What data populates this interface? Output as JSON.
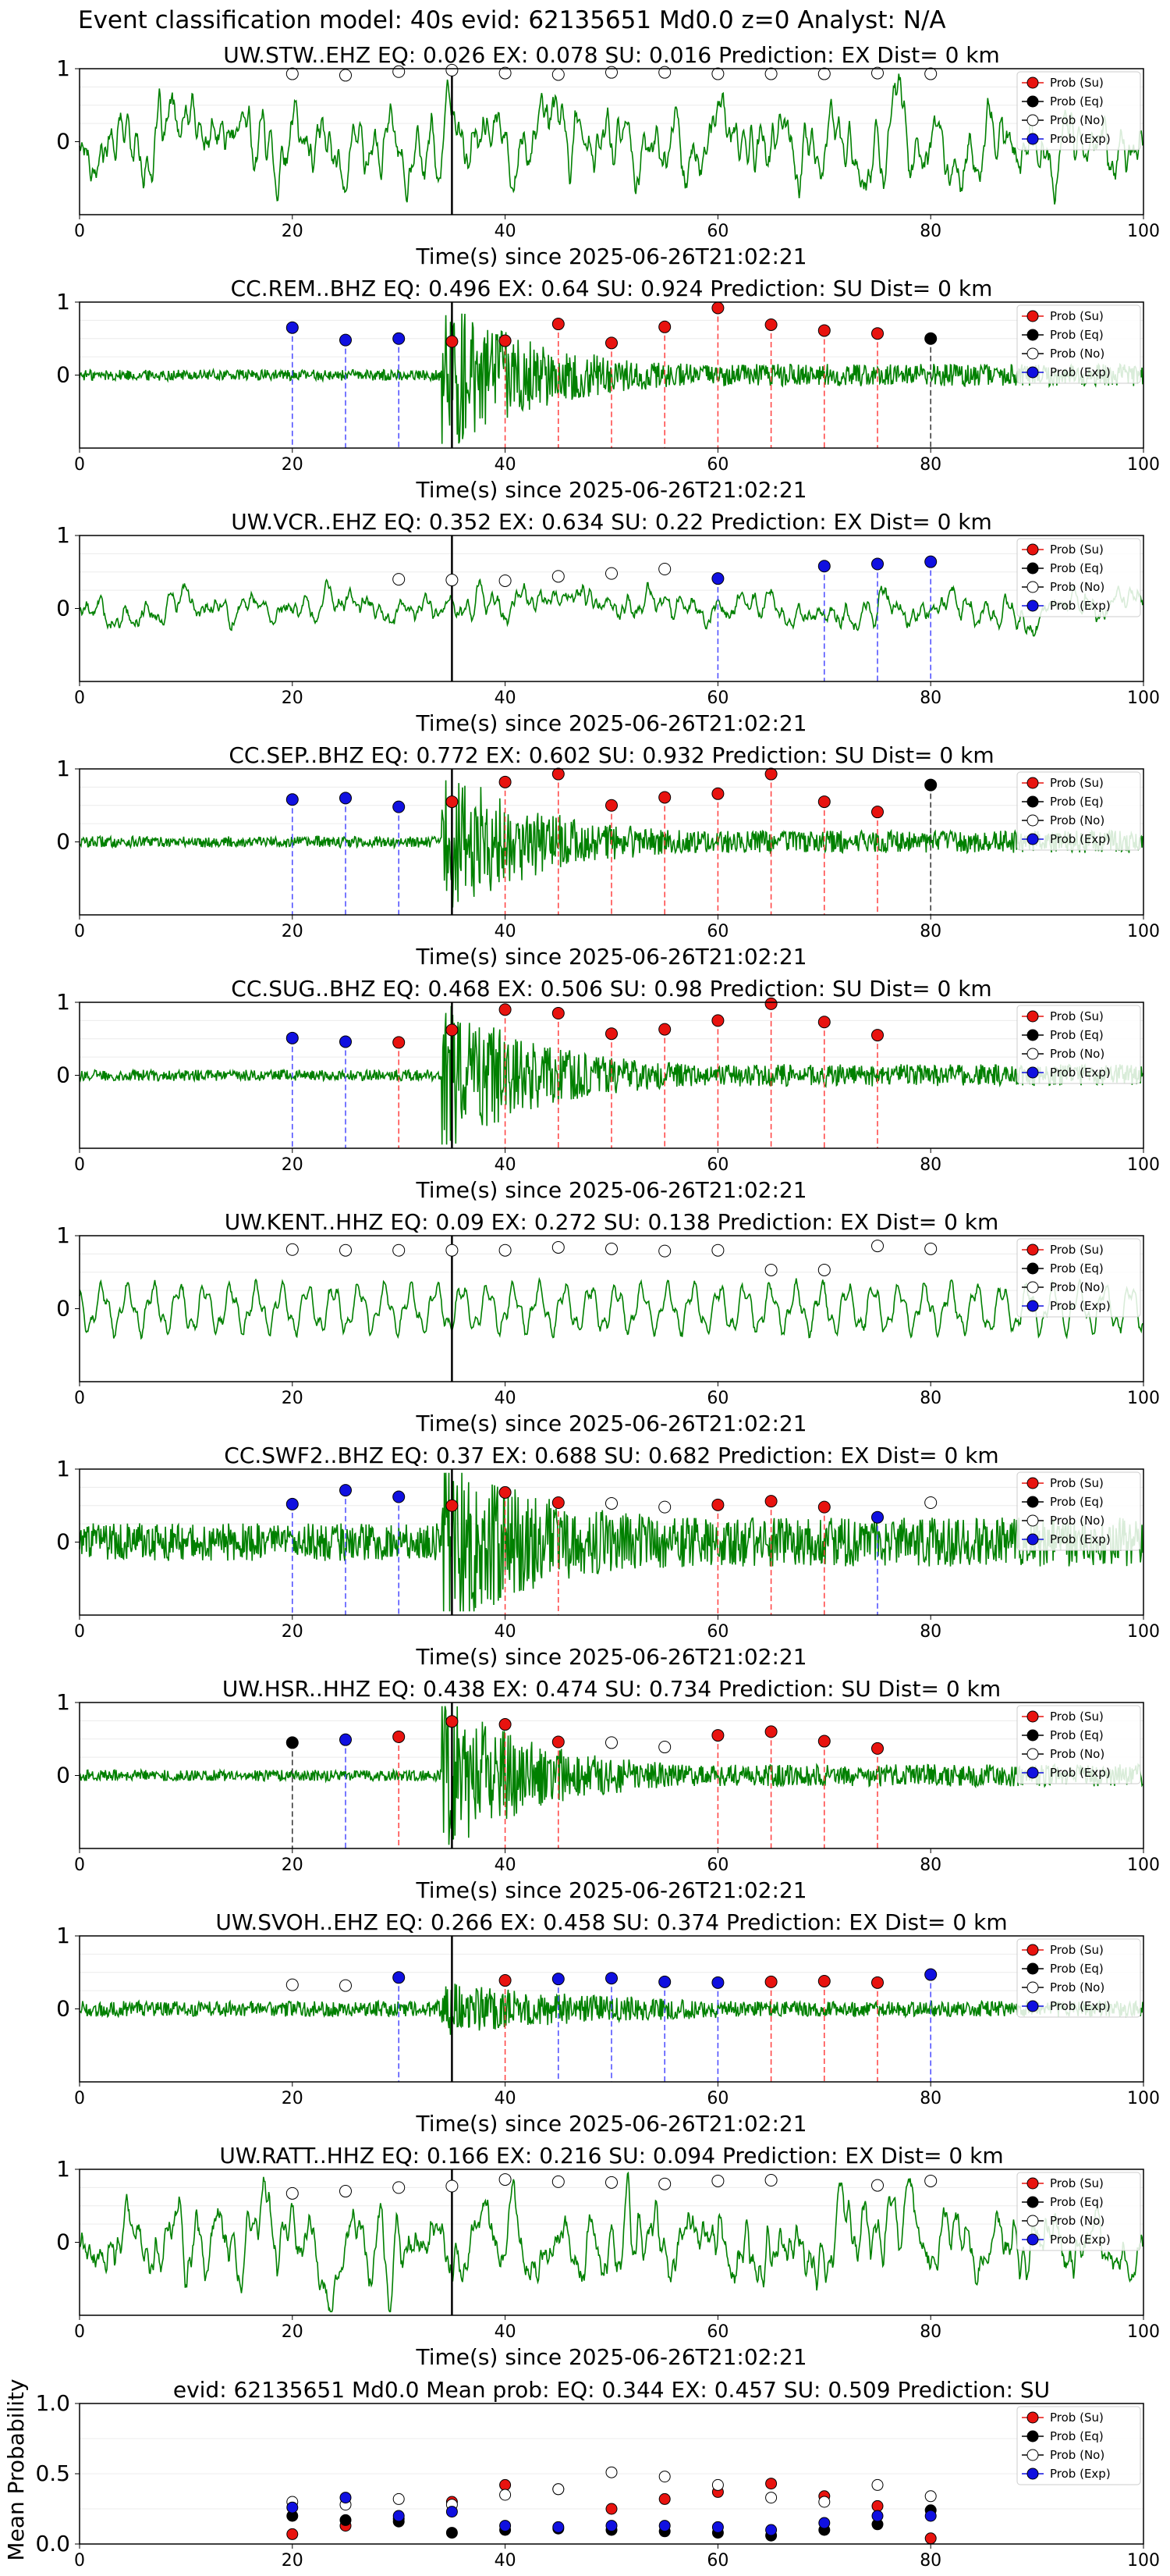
{
  "figure_title": "Event classification model: 40s evid: 62135651 Md0.0 z=0 Analyst: N/A",
  "legend_labels": [
    "Prob (Su)",
    "Prob (Eq)",
    "Prob (No)",
    "Prob (Exp)"
  ],
  "colors": {
    "Su": "#e8130f",
    "Eq": "#000000",
    "No": "#ffffff",
    "Exp": "#1010e0",
    "waveform": "#008000",
    "line_Su": "#ff4040",
    "line_Eq": "#333333",
    "line_Exp": "#4a4aff"
  },
  "x_axis": {
    "xlabel": "Time(s) since 2025-06-26T21:02:21",
    "ticks": [
      0,
      20,
      40,
      60,
      80,
      100
    ]
  },
  "chart_data": [
    {
      "type": "line",
      "title": "UW.STW..EHZ   EQ: 0.026  EX: 0.078  SU: 0.016   Prediction: EX    Dist= 0 km",
      "xlabel": "Time(s) since 2025-06-26T21:02:21",
      "xlim": [
        0,
        100
      ],
      "ylim": [
        -1,
        1
      ],
      "yticks": [
        0,
        1
      ],
      "arrival_time": 35,
      "waveform_style": "noisy",
      "legend_position": "top-right",
      "points": [
        [
          20,
          0.93,
          "No"
        ],
        [
          25,
          0.91,
          "No"
        ],
        [
          30,
          0.96,
          "No"
        ],
        [
          35,
          0.98,
          "No"
        ],
        [
          40,
          0.94,
          "No"
        ],
        [
          45,
          0.92,
          "No"
        ],
        [
          50,
          0.95,
          "No"
        ],
        [
          55,
          0.95,
          "No"
        ],
        [
          60,
          0.93,
          "No"
        ],
        [
          65,
          0.93,
          "No"
        ],
        [
          70,
          0.93,
          "No"
        ],
        [
          75,
          0.94,
          "No"
        ],
        [
          80,
          0.93,
          "No"
        ]
      ]
    },
    {
      "type": "line",
      "title": "CC.REM..BHZ   EQ: 0.496  EX: 0.64  SU: 0.924   Prediction: SU    Dist= 0 km",
      "xlabel": "Time(s) since 2025-06-26T21:02:21",
      "xlim": [
        0,
        100
      ],
      "ylim": [
        -1,
        1
      ],
      "yticks": [
        0,
        1
      ],
      "arrival_time": 35,
      "waveform_style": "event",
      "legend_position": "top-right",
      "points": [
        [
          20,
          0.65,
          "Exp"
        ],
        [
          25,
          0.48,
          "Exp"
        ],
        [
          30,
          0.5,
          "Exp"
        ],
        [
          35,
          0.46,
          "Su"
        ],
        [
          40,
          0.47,
          "Su"
        ],
        [
          45,
          0.7,
          "Su"
        ],
        [
          50,
          0.44,
          "Su"
        ],
        [
          55,
          0.66,
          "Su"
        ],
        [
          60,
          0.92,
          "Su"
        ],
        [
          65,
          0.69,
          "Su"
        ],
        [
          70,
          0.61,
          "Su"
        ],
        [
          75,
          0.57,
          "Su"
        ],
        [
          80,
          0.5,
          "Eq"
        ]
      ]
    },
    {
      "type": "line",
      "title": "UW.VCR..EHZ   EQ: 0.352  EX: 0.634  SU: 0.22   Prediction: EX    Dist= 0 km",
      "xlabel": "Time(s) since 2025-06-26T21:02:21",
      "xlim": [
        0,
        100
      ],
      "ylim": [
        -1,
        1
      ],
      "yticks": [
        0,
        1
      ],
      "arrival_time": 35,
      "waveform_style": "noisy_small",
      "legend_position": "top-right",
      "points": [
        [
          30,
          0.4,
          "No"
        ],
        [
          35,
          0.39,
          "No"
        ],
        [
          40,
          0.38,
          "No"
        ],
        [
          45,
          0.44,
          "No"
        ],
        [
          50,
          0.48,
          "No"
        ],
        [
          55,
          0.54,
          "No"
        ],
        [
          60,
          0.41,
          "Exp"
        ],
        [
          70,
          0.58,
          "Exp"
        ],
        [
          75,
          0.61,
          "Exp"
        ],
        [
          80,
          0.64,
          "Exp"
        ]
      ]
    },
    {
      "type": "line",
      "title": "CC.SEP..BHZ   EQ: 0.772  EX: 0.602  SU: 0.932   Prediction: SU    Dist= 0 km",
      "xlabel": "Time(s) since 2025-06-26T21:02:21",
      "xlim": [
        0,
        100
      ],
      "ylim": [
        -1,
        1
      ],
      "yticks": [
        0,
        1
      ],
      "arrival_time": 35,
      "waveform_style": "event",
      "legend_position": "top-right",
      "points": [
        [
          20,
          0.58,
          "Exp"
        ],
        [
          25,
          0.6,
          "Exp"
        ],
        [
          30,
          0.48,
          "Exp"
        ],
        [
          35,
          0.55,
          "Su"
        ],
        [
          40,
          0.82,
          "Su"
        ],
        [
          45,
          0.93,
          "Su"
        ],
        [
          50,
          0.5,
          "Su"
        ],
        [
          55,
          0.61,
          "Su"
        ],
        [
          60,
          0.66,
          "Su"
        ],
        [
          65,
          0.93,
          "Su"
        ],
        [
          70,
          0.55,
          "Su"
        ],
        [
          75,
          0.41,
          "Su"
        ],
        [
          80,
          0.78,
          "Eq"
        ]
      ]
    },
    {
      "type": "line",
      "title": "CC.SUG..BHZ   EQ: 0.468  EX: 0.506  SU: 0.98   Prediction: SU    Dist= 0 km",
      "xlabel": "Time(s) since 2025-06-26T21:02:21",
      "xlim": [
        0,
        100
      ],
      "ylim": [
        -1,
        1
      ],
      "yticks": [
        0,
        1
      ],
      "arrival_time": 35,
      "waveform_style": "event",
      "legend_position": "top-right",
      "points": [
        [
          20,
          0.51,
          "Exp"
        ],
        [
          25,
          0.46,
          "Exp"
        ],
        [
          30,
          0.45,
          "Su"
        ],
        [
          35,
          0.62,
          "Su"
        ],
        [
          40,
          0.9,
          "Su"
        ],
        [
          45,
          0.85,
          "Su"
        ],
        [
          50,
          0.57,
          "Su"
        ],
        [
          55,
          0.63,
          "Su"
        ],
        [
          60,
          0.75,
          "Su"
        ],
        [
          65,
          0.98,
          "Su"
        ],
        [
          70,
          0.73,
          "Su"
        ],
        [
          75,
          0.55,
          "Su"
        ]
      ]
    },
    {
      "type": "line",
      "title": "UW.KENT..HHZ   EQ: 0.09  EX: 0.272  SU: 0.138   Prediction: EX    Dist= 0 km",
      "xlabel": "Time(s) since 2025-06-26T21:02:21",
      "xlim": [
        0,
        100
      ],
      "ylim": [
        -1,
        1
      ],
      "yticks": [
        0,
        1
      ],
      "arrival_time": 35,
      "waveform_style": "smooth",
      "legend_position": "top-right",
      "points": [
        [
          20,
          0.81,
          "No"
        ],
        [
          25,
          0.8,
          "No"
        ],
        [
          30,
          0.8,
          "No"
        ],
        [
          35,
          0.8,
          "No"
        ],
        [
          40,
          0.8,
          "No"
        ],
        [
          45,
          0.84,
          "No"
        ],
        [
          50,
          0.82,
          "No"
        ],
        [
          55,
          0.79,
          "No"
        ],
        [
          60,
          0.8,
          "No"
        ],
        [
          65,
          0.53,
          "No"
        ],
        [
          70,
          0.53,
          "No"
        ],
        [
          75,
          0.86,
          "No"
        ],
        [
          80,
          0.82,
          "No"
        ]
      ]
    },
    {
      "type": "line",
      "title": "CC.SWF2..BHZ   EQ: 0.37  EX: 0.688  SU: 0.682   Prediction: EX    Dist= 0 km",
      "xlabel": "Time(s) since 2025-06-26T21:02:21",
      "xlim": [
        0,
        100
      ],
      "ylim": [
        -1,
        1
      ],
      "yticks": [
        0,
        1
      ],
      "arrival_time": 35,
      "waveform_style": "event_noisy",
      "legend_position": "top-right",
      "points": [
        [
          20,
          0.52,
          "Exp"
        ],
        [
          25,
          0.71,
          "Exp"
        ],
        [
          30,
          0.62,
          "Exp"
        ],
        [
          35,
          0.5,
          "Su"
        ],
        [
          40,
          0.68,
          "Su"
        ],
        [
          45,
          0.54,
          "Su"
        ],
        [
          50,
          0.53,
          "No"
        ],
        [
          55,
          0.48,
          "No"
        ],
        [
          60,
          0.51,
          "Su"
        ],
        [
          65,
          0.56,
          "Su"
        ],
        [
          70,
          0.48,
          "Su"
        ],
        [
          75,
          0.34,
          "Exp"
        ],
        [
          80,
          0.54,
          "No"
        ]
      ]
    },
    {
      "type": "line",
      "title": "UW.HSR..HHZ   EQ: 0.438  EX: 0.474  SU: 0.734   Prediction: SU    Dist= 0 km",
      "xlabel": "Time(s) since 2025-06-26T21:02:21",
      "xlim": [
        0,
        100
      ],
      "ylim": [
        -1,
        1
      ],
      "yticks": [
        0,
        1
      ],
      "arrival_time": 35,
      "waveform_style": "event",
      "legend_position": "top-right",
      "points": [
        [
          20,
          0.45,
          "Eq"
        ],
        [
          25,
          0.49,
          "Exp"
        ],
        [
          30,
          0.53,
          "Su"
        ],
        [
          35,
          0.74,
          "Su"
        ],
        [
          40,
          0.7,
          "Su"
        ],
        [
          45,
          0.46,
          "Su"
        ],
        [
          50,
          0.45,
          "No"
        ],
        [
          55,
          0.39,
          "No"
        ],
        [
          60,
          0.55,
          "Su"
        ],
        [
          65,
          0.6,
          "Su"
        ],
        [
          70,
          0.47,
          "Su"
        ],
        [
          75,
          0.37,
          "Su"
        ]
      ]
    },
    {
      "type": "line",
      "title": "UW.SVOH..EHZ   EQ: 0.266  EX: 0.458  SU: 0.374   Prediction: EX    Dist= 0 km",
      "xlabel": "Time(s) since 2025-06-26T21:02:21",
      "xlim": [
        0,
        100
      ],
      "ylim": [
        -1,
        1
      ],
      "yticks": [
        0,
        1
      ],
      "arrival_time": 35,
      "waveform_style": "event_small",
      "legend_position": "top-right",
      "points": [
        [
          20,
          0.33,
          "No"
        ],
        [
          25,
          0.32,
          "No"
        ],
        [
          30,
          0.43,
          "Exp"
        ],
        [
          40,
          0.39,
          "Su"
        ],
        [
          45,
          0.41,
          "Exp"
        ],
        [
          50,
          0.42,
          "Exp"
        ],
        [
          55,
          0.37,
          "Exp"
        ],
        [
          60,
          0.36,
          "Exp"
        ],
        [
          65,
          0.37,
          "Su"
        ],
        [
          70,
          0.38,
          "Su"
        ],
        [
          75,
          0.36,
          "Su"
        ],
        [
          80,
          0.47,
          "Exp"
        ]
      ]
    },
    {
      "type": "line",
      "title": "UW.RATT..HHZ   EQ: 0.166  EX: 0.216  SU: 0.094   Prediction: EX    Dist= 0 km",
      "xlabel": "Time(s) since 2025-06-26T21:02:21",
      "xlim": [
        0,
        100
      ],
      "ylim": [
        -1,
        1
      ],
      "yticks": [
        0,
        1
      ],
      "arrival_time": 35,
      "waveform_style": "noisy",
      "legend_position": "top-right",
      "points": [
        [
          20,
          0.67,
          "No"
        ],
        [
          25,
          0.7,
          "No"
        ],
        [
          30,
          0.75,
          "No"
        ],
        [
          35,
          0.77,
          "No"
        ],
        [
          40,
          0.86,
          "No"
        ],
        [
          45,
          0.83,
          "No"
        ],
        [
          50,
          0.82,
          "No"
        ],
        [
          55,
          0.8,
          "No"
        ],
        [
          60,
          0.84,
          "No"
        ],
        [
          65,
          0.85,
          "No"
        ],
        [
          75,
          0.78,
          "No"
        ],
        [
          80,
          0.84,
          "No"
        ]
      ]
    },
    {
      "type": "scatter",
      "title": "evid: 62135651  Md0.0   Mean prob:   EQ: 0.344  EX: 0.457  SU: 0.509   Prediction: SU",
      "xlabel": "",
      "ylabel": "Mean Probability",
      "xlim": [
        0,
        100
      ],
      "ylim": [
        0,
        1
      ],
      "yticks": [
        0,
        0.5,
        1
      ],
      "ytick_labels": [
        "0.0",
        "0.5",
        "1.0"
      ],
      "legend_position": "top-right",
      "x": [
        20,
        25,
        30,
        35,
        40,
        45,
        50,
        55,
        60,
        65,
        70,
        75,
        80
      ],
      "series": [
        {
          "name": "Prob (Su)",
          "key": "Su",
          "values": [
            0.07,
            0.13,
            0.18,
            0.3,
            0.42,
            0.39,
            0.25,
            0.32,
            0.37,
            0.43,
            0.34,
            0.27,
            0.04
          ]
        },
        {
          "name": "Prob (Eq)",
          "key": "Eq",
          "values": [
            0.2,
            0.17,
            0.16,
            0.08,
            0.1,
            0.11,
            0.1,
            0.09,
            0.08,
            0.06,
            0.1,
            0.14,
            0.24
          ]
        },
        {
          "name": "Prob (No)",
          "key": "No",
          "values": [
            0.3,
            0.28,
            0.32,
            0.28,
            0.35,
            0.39,
            0.51,
            0.48,
            0.42,
            0.33,
            0.3,
            0.42,
            0.34
          ]
        },
        {
          "name": "Prob (Exp)",
          "key": "Exp",
          "values": [
            0.26,
            0.33,
            0.2,
            0.23,
            0.13,
            0.12,
            0.13,
            0.13,
            0.12,
            0.1,
            0.15,
            0.2,
            0.2
          ]
        }
      ]
    }
  ]
}
